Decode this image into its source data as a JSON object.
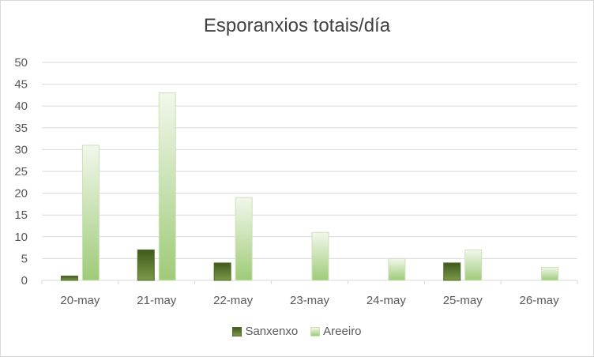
{
  "chart_data": {
    "type": "bar",
    "title": "Esporanxios totais/día",
    "categories": [
      "20-may",
      "21-may",
      "22-may",
      "23-may",
      "24-may",
      "25-may",
      "26-may"
    ],
    "series": [
      {
        "name": "Sanxenxo",
        "values": [
          1,
          7,
          4,
          0,
          0,
          4,
          0
        ],
        "color": "#5a7a2e"
      },
      {
        "name": "Areeiro",
        "values": [
          31,
          43,
          19,
          11,
          5,
          7,
          3
        ],
        "color": "#a9d18e"
      }
    ],
    "yticks": [
      "0",
      "5",
      "10",
      "15",
      "20",
      "25",
      "30",
      "35",
      "40",
      "45",
      "50"
    ],
    "ylim": [
      0,
      50
    ],
    "grid": true,
    "legend_position": "bottom"
  }
}
